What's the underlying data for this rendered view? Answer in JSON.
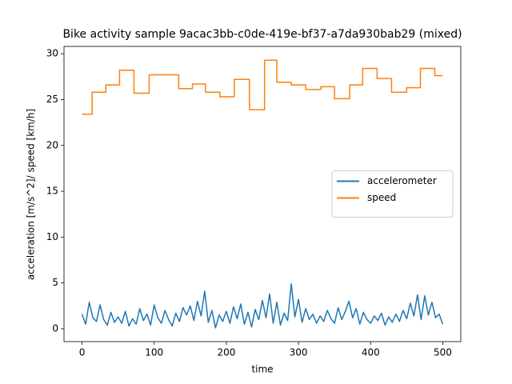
{
  "chart_data": {
    "type": "line",
    "title": "Bike activity sample 9acac3bb-c0de-419e-bf37-a7da930bab29 (mixed)",
    "x_label": "time",
    "y_label": "acceleration [m/s^2]/ speed [km/h]",
    "xlim": [
      -25,
      525
    ],
    "ylim": [
      -1.4,
      30.8
    ],
    "xticks": [
      0,
      100,
      200,
      300,
      400,
      500
    ],
    "yticks": [
      0,
      5,
      10,
      15,
      20,
      25,
      30
    ],
    "legend": "center right",
    "series": [
      {
        "name": "accelerometer",
        "color": "#1f77b4",
        "x": [
          0,
          5,
          10,
          15,
          20,
          25,
          30,
          35,
          40,
          45,
          50,
          55,
          60,
          65,
          70,
          75,
          80,
          85,
          90,
          95,
          100,
          105,
          110,
          115,
          120,
          125,
          130,
          135,
          140,
          145,
          150,
          155,
          160,
          165,
          170,
          175,
          180,
          185,
          190,
          195,
          200,
          205,
          210,
          215,
          220,
          225,
          230,
          235,
          240,
          245,
          250,
          255,
          260,
          265,
          270,
          275,
          280,
          285,
          290,
          295,
          300,
          305,
          310,
          315,
          320,
          325,
          330,
          335,
          340,
          345,
          350,
          355,
          360,
          365,
          370,
          375,
          380,
          385,
          390,
          395,
          400,
          405,
          410,
          415,
          420,
          425,
          430,
          435,
          440,
          445,
          450,
          455,
          460,
          465,
          470,
          475,
          480,
          485,
          490,
          495,
          500
        ],
        "values": [
          1.6,
          0.5,
          2.9,
          1.2,
          0.8,
          2.6,
          1.0,
          0.4,
          1.8,
          0.7,
          1.3,
          0.6,
          1.9,
          0.3,
          1.1,
          0.5,
          2.2,
          0.9,
          1.6,
          0.4,
          2.6,
          1.2,
          0.6,
          2.0,
          1.0,
          0.3,
          1.7,
          0.8,
          2.3,
          1.5,
          2.5,
          0.9,
          3.0,
          1.4,
          4.1,
          0.7,
          2.0,
          0.1,
          1.5,
          0.8,
          1.9,
          0.6,
          2.4,
          1.1,
          2.7,
          0.5,
          1.8,
          0.2,
          2.1,
          1.0,
          3.1,
          1.2,
          3.8,
          0.6,
          2.9,
          0.4,
          1.7,
          0.9,
          4.9,
          1.3,
          3.2,
          0.7,
          2.2,
          1.0,
          1.6,
          0.6,
          1.4,
          0.8,
          2.0,
          1.1,
          0.6,
          2.3,
          1.0,
          1.9,
          3.0,
          1.2,
          2.2,
          0.5,
          1.8,
          1.0,
          0.6,
          1.4,
          0.9,
          1.7,
          0.4,
          1.3,
          0.7,
          1.6,
          0.8,
          2.0,
          1.1,
          2.8,
          1.4,
          3.7,
          1.0,
          3.6,
          1.5,
          2.9,
          1.2,
          1.6,
          0.5
        ]
      },
      {
        "name": "speed",
        "color": "#ff7f0e",
        "x": [
          0,
          14,
          14,
          33,
          33,
          52,
          52,
          72,
          72,
          93,
          93,
          134,
          134,
          153,
          153,
          171,
          171,
          191,
          191,
          211,
          211,
          232,
          232,
          253,
          253,
          270,
          270,
          290,
          290,
          310,
          310,
          331,
          331,
          350,
          350,
          371,
          371,
          389,
          389,
          409,
          409,
          429,
          429,
          450,
          450,
          469,
          469,
          489,
          489,
          500
        ],
        "values": [
          23.4,
          23.4,
          25.8,
          25.8,
          26.6,
          26.6,
          28.2,
          28.2,
          25.7,
          25.7,
          27.7,
          27.7,
          26.2,
          26.2,
          26.7,
          26.7,
          25.8,
          25.8,
          25.3,
          25.3,
          27.2,
          27.2,
          23.9,
          23.9,
          29.3,
          29.3,
          26.9,
          26.9,
          26.6,
          26.6,
          26.1,
          26.1,
          26.4,
          26.4,
          25.1,
          25.1,
          26.6,
          26.6,
          28.4,
          28.4,
          27.3,
          27.3,
          25.8,
          25.8,
          26.3,
          26.3,
          28.4,
          28.4,
          27.6,
          27.6
        ]
      }
    ]
  }
}
